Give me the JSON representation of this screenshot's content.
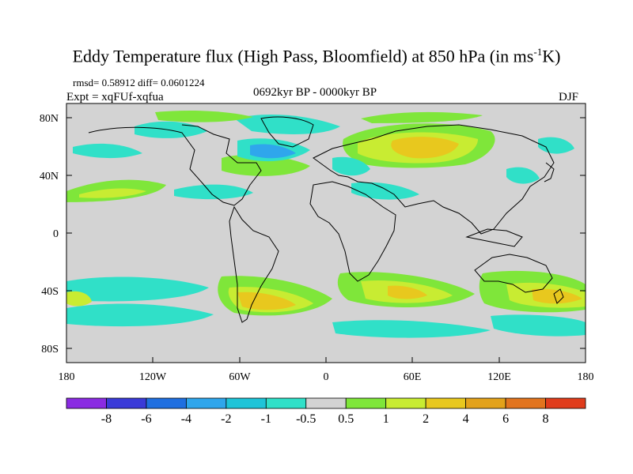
{
  "title": {
    "main": "Eddy Temperature flux (High Pass, Bloomfield) at 850 hPa (in ms",
    "superscript": "-1",
    "end": "K)"
  },
  "stats": "rmsd= 0.58912  diff= 0.0601224",
  "experiment": "Expt = xqFUf-xqfua",
  "period": "0692kyr BP - 0000kyr BP",
  "season": "DJF",
  "lat_ticks": [
    "80N",
    "40N",
    "0",
    "40S",
    "80S"
  ],
  "lon_ticks": [
    "180",
    "120W",
    "60W",
    "0",
    "60E",
    "120E",
    "180"
  ],
  "colorbar": {
    "colors": [
      "#8a2be2",
      "#3a3ad8",
      "#1f6fe0",
      "#2fa6ec",
      "#1ec4d8",
      "#30e0c8",
      "#d3d3d3",
      "#7fe63a",
      "#c8ec32",
      "#e8c81e",
      "#e3a21a",
      "#e2741e",
      "#e03c1c"
    ],
    "labels": [
      "-8",
      "-6",
      "-4",
      "-2",
      "-1",
      "-0.5",
      "0.5",
      "1",
      "2",
      "4",
      "6",
      "8"
    ]
  },
  "map": {
    "background_color": "#d3d3d3",
    "coastline_color": "#000000"
  }
}
